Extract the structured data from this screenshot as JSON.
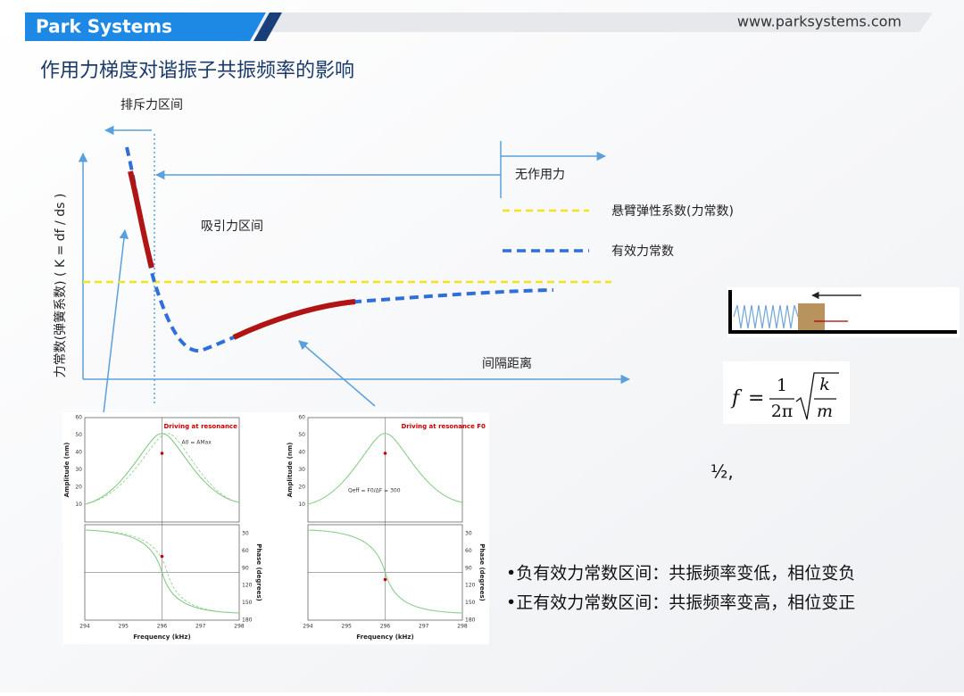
{
  "header": {
    "brand": "Park Systems",
    "url": "www.parksystems.com"
  },
  "title": "作用力梯度对谐振子共振频率的影响",
  "diagram": {
    "repulsive": "排斥力区间",
    "attractive": "吸引力区间",
    "no_force": "无作用力",
    "x_axis": "间隔距离",
    "y_axis": "力常数(弹簧系数) ( K = df / ds )",
    "legend": [
      "悬臂弹性系数(力常数)",
      "有效力常数"
    ]
  },
  "plots": [
    {
      "label": "Driving at resonance",
      "annotation": "A0 = AMax",
      "amplitude_axis": "Amplitude (nm)",
      "phase_axis": "Phase (degrees)",
      "freq_axis": "Frequency (kHz)",
      "amplitude_ticks": [
        "60",
        "50",
        "40",
        "30",
        "20",
        "10"
      ],
      "phase_ticks": [
        "30",
        "60",
        "90",
        "120",
        "150",
        "180"
      ],
      "freq_ticks": [
        "294",
        "295",
        "296",
        "297",
        "298"
      ]
    },
    {
      "label": "Driving at resonance F0",
      "annotation": "Qeff = F0/ΔF = 300",
      "amplitude_axis": "Amplitude (nm)",
      "phase_axis": "Phase (degrees)",
      "freq_axis": "Frequency (kHz)",
      "amplitude_ticks": [
        "60",
        "50",
        "40",
        "30",
        "20",
        "10"
      ],
      "phase_ticks": [
        "30",
        "60",
        "90",
        "120",
        "150",
        "180"
      ],
      "freq_ticks": [
        "294",
        "295",
        "296",
        "297",
        "298"
      ]
    }
  ],
  "formula": {
    "lhs": "f",
    "eq": "=",
    "num": "1",
    "den": "2π",
    "k": "k",
    "m": "m"
  },
  "note": "½,",
  "bullets": [
    "•负有效力常数区间：共振频率变低，相位变负",
    "•正有效力常数区间：共振频率变高，相位变正"
  ]
}
